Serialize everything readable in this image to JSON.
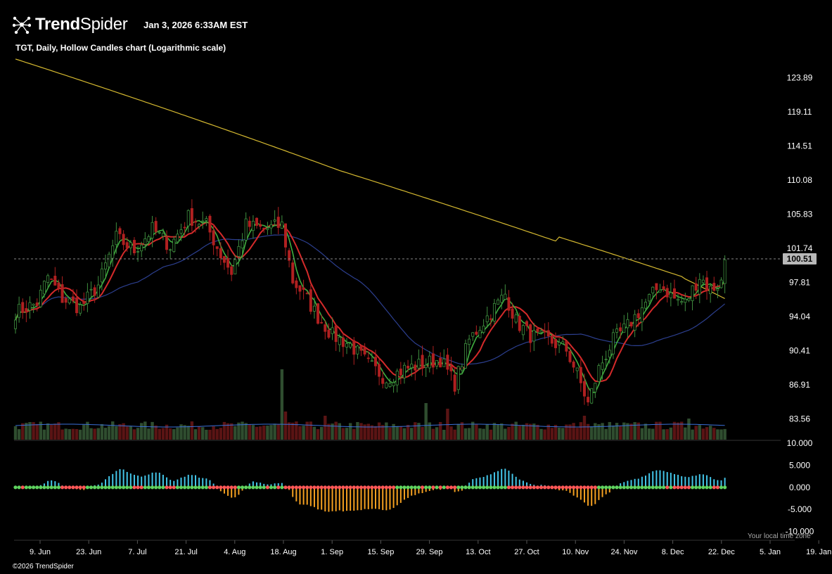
{
  "header": {
    "brand_bold": "Trend",
    "brand_light": "Spider",
    "timestamp": "Jan 3, 2026 6:33AM EST",
    "chart_subtitle": "TGT, Daily, Hollow Candles chart (Logarithmic scale)"
  },
  "footer": {
    "copyright": "©2026 TrendSpider",
    "local_time_note": "Your local time zone"
  },
  "icons": {
    "logo": "spider-logo-icon"
  },
  "colors": {
    "background": "#000000",
    "up": "#3f8f3f",
    "down": "#b02020",
    "ma_fast": "#3fae3f",
    "ma_slow": "#d42a2a",
    "ma_mid": "#2c3f8f",
    "ma_long": "#d4b830",
    "osc_pos": "#43c5e8",
    "osc_neg": "#f5a020",
    "dot_bull": "#5fd35f",
    "dot_bear": "#ff5757"
  },
  "chart_data": {
    "type": "candlestick",
    "symbol": "TGT",
    "interval": "Daily",
    "scale": "log",
    "ylim": [
      81.5,
      127.0
    ],
    "y_ticks": [
      "123.89",
      "119.11",
      "114.51",
      "110.08",
      "105.83",
      "101.74",
      "97.81",
      "94.04",
      "90.41",
      "86.91",
      "83.56"
    ],
    "last_price": "100.51",
    "x_ticks": [
      "9. Jun",
      "23. Jun",
      "7. Jul",
      "21. Jul",
      "4. Aug",
      "18. Aug",
      "1. Sep",
      "15. Sep",
      "29. Sep",
      "13. Oct",
      "27. Oct",
      "10. Nov",
      "24. Nov",
      "8. Dec",
      "22. Dec",
      "5. Jan",
      "19. Jan"
    ],
    "close_anchors": [
      [
        0,
        94.5
      ],
      [
        6,
        95.5
      ],
      [
        9,
        98.5
      ],
      [
        13,
        96.0
      ],
      [
        18,
        95.0
      ],
      [
        23,
        97.5
      ],
      [
        28,
        103.0
      ],
      [
        33,
        101.5
      ],
      [
        38,
        104.0
      ],
      [
        43,
        102.0
      ],
      [
        48,
        105.5
      ],
      [
        53,
        104.5
      ],
      [
        57,
        101.0
      ],
      [
        60,
        99.0
      ],
      [
        64,
        104.5
      ],
      [
        69,
        104.0
      ],
      [
        74,
        104.5
      ],
      [
        77,
        98.0
      ],
      [
        80,
        96.5
      ],
      [
        84,
        94.0
      ],
      [
        88,
        92.0
      ],
      [
        93,
        91.0
      ],
      [
        98,
        89.0
      ],
      [
        103,
        87.5
      ],
      [
        108,
        88.5
      ],
      [
        113,
        89.0
      ],
      [
        118,
        89.5
      ],
      [
        122,
        87.0
      ],
      [
        126,
        91.5
      ],
      [
        131,
        94.0
      ],
      [
        136,
        96.5
      ],
      [
        139,
        93.5
      ],
      [
        143,
        92.0
      ],
      [
        148,
        91.5
      ],
      [
        153,
        90.5
      ],
      [
        156,
        88.0
      ],
      [
        159,
        85.0
      ],
      [
        162,
        88.5
      ],
      [
        166,
        91.5
      ],
      [
        170,
        93.0
      ],
      [
        175,
        95.5
      ],
      [
        179,
        97.5
      ],
      [
        183,
        96.0
      ],
      [
        186,
        95.5
      ],
      [
        190,
        98.5
      ],
      [
        193,
        97.0
      ],
      [
        196,
        97.8
      ],
      [
        197,
        100.4
      ]
    ],
    "oscillator": {
      "zero_line": 0,
      "ylim": [
        -11.5,
        10.0
      ],
      "y_ticks": [
        "10.000",
        "5.000",
        "0.000",
        "-5.000",
        "-10.000"
      ]
    },
    "indicators": [
      "MA fast (green)",
      "MA slow (red)",
      "MA mid (blue)",
      "MA long (yellow)",
      "Volume",
      "Oscillator histogram"
    ]
  }
}
